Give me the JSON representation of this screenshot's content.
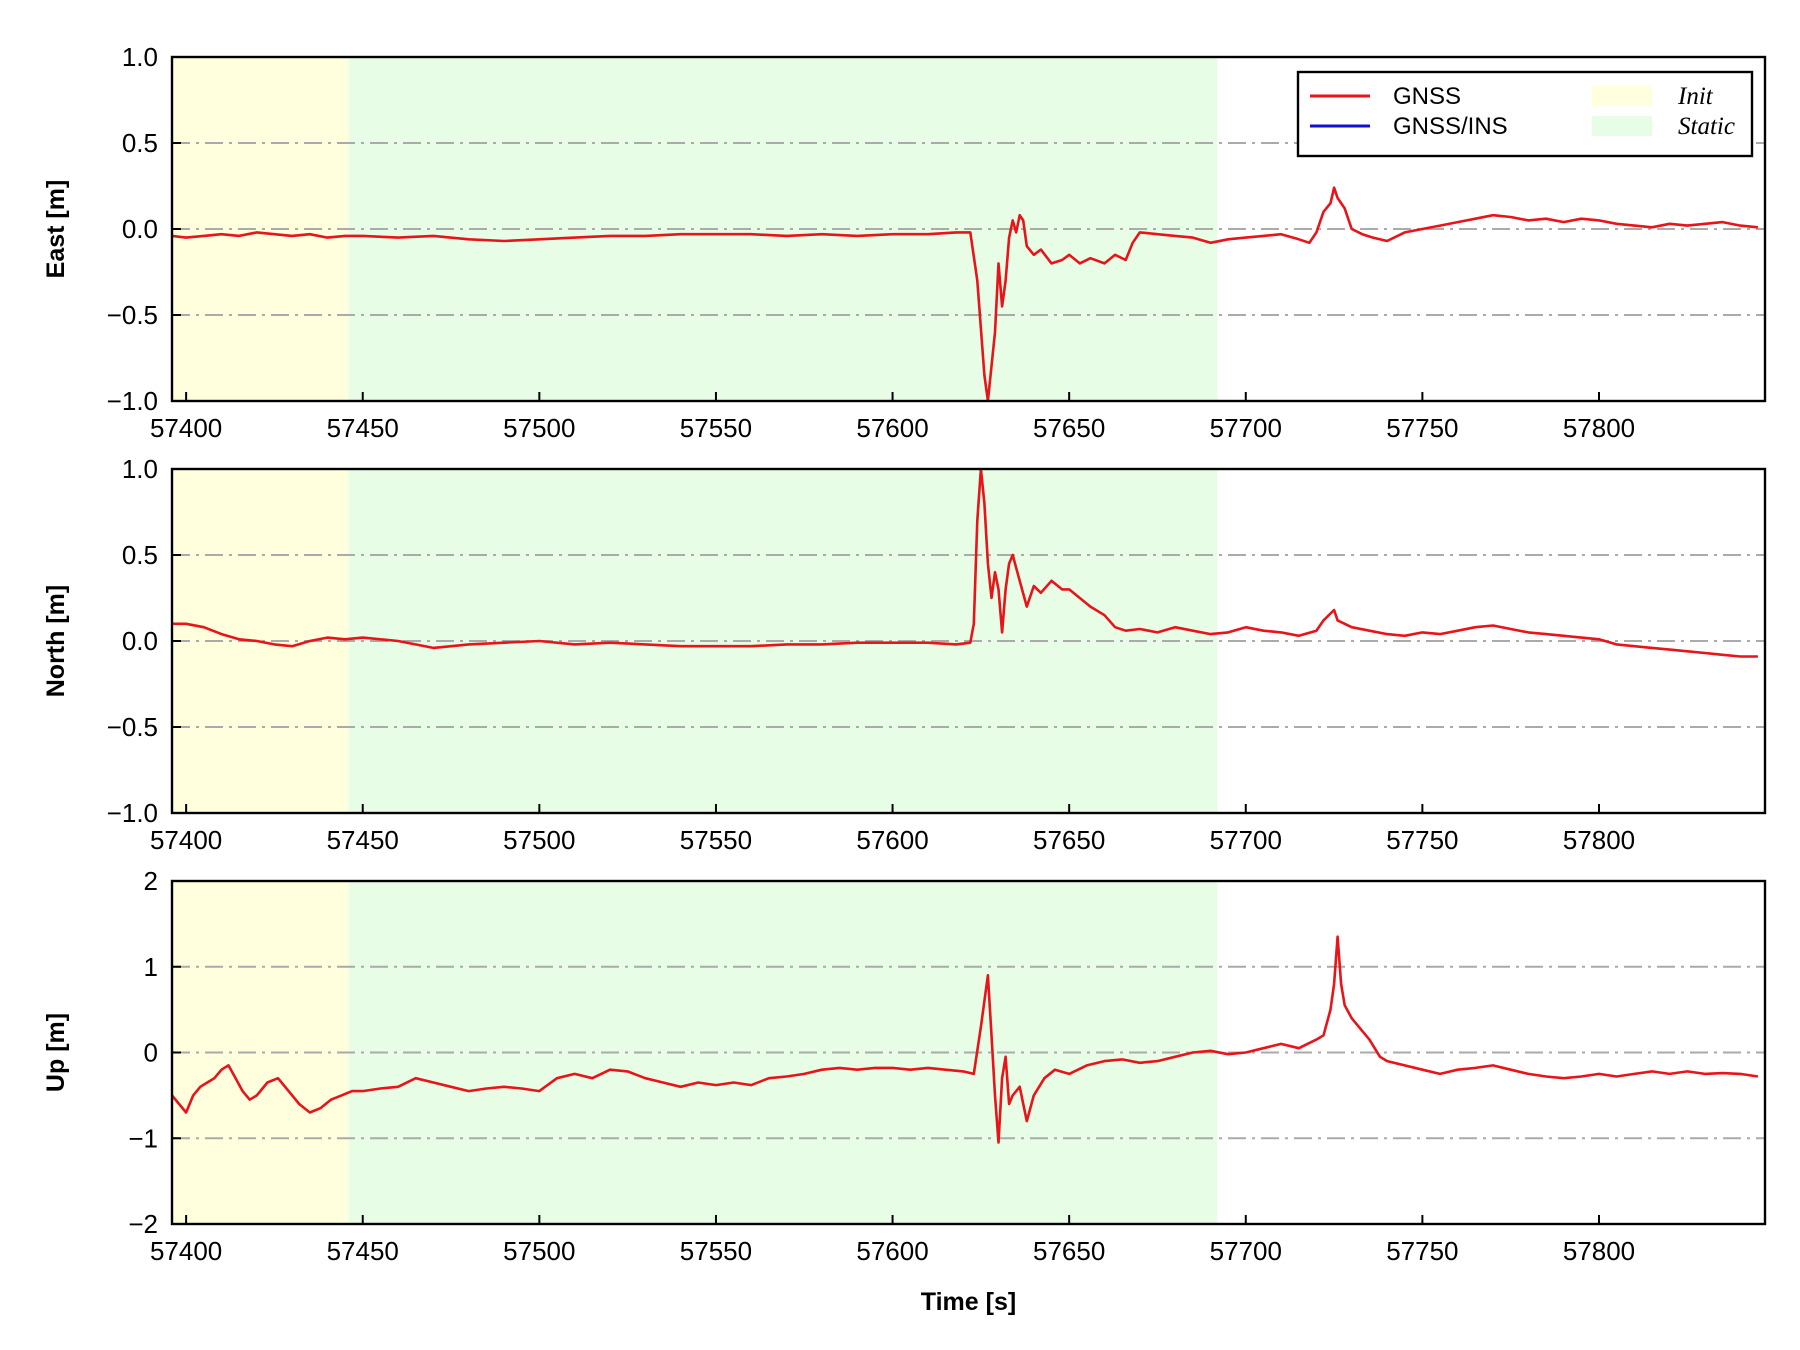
{
  "colors": {
    "gnss": "#e8141a",
    "gnss_ins": "#1010d0",
    "init_band": "#ffffdd",
    "static_band": "#e8fde6",
    "grid": "#aaaaaa"
  },
  "legend": {
    "placement": "top-right",
    "items": [
      {
        "label": "GNSS",
        "kind": "line",
        "color_key": "gnss"
      },
      {
        "label": "GNSS/INS",
        "kind": "line",
        "color_key": "gnss_ins"
      },
      {
        "label": "Init",
        "kind": "patch",
        "color_key": "init_band"
      },
      {
        "label": "Static",
        "kind": "patch",
        "color_key": "static_band"
      }
    ]
  },
  "chart_data": [
    {
      "type": "line",
      "ylabel": "East [m]",
      "xlabel": "",
      "xlim": [
        57396,
        57847
      ],
      "ylim": [
        -1.0,
        1.0
      ],
      "xticks": [
        57400,
        57450,
        57500,
        57550,
        57600,
        57650,
        57700,
        57750,
        57800
      ],
      "yticks": [
        1.0,
        0.5,
        0.0,
        -0.5,
        -1.0
      ],
      "ytick_labels": [
        "1.0",
        "0.5",
        "0.0",
        "−0.5",
        "−1.0"
      ],
      "grid": {
        "y": true,
        "style": "dash-dot"
      },
      "bands": [
        {
          "label": "Init",
          "x": [
            57396,
            57446
          ]
        },
        {
          "label": "Static",
          "x": [
            57446,
            57692
          ]
        }
      ],
      "series": [
        {
          "name": "GNSS",
          "x": [
            57396,
            57400,
            57405,
            57410,
            57415,
            57420,
            57425,
            57430,
            57435,
            57440,
            57445,
            57450,
            57460,
            57470,
            57480,
            57490,
            57500,
            57510,
            57520,
            57530,
            57540,
            57550,
            57560,
            57570,
            57580,
            57590,
            57600,
            57610,
            57618,
            57622,
            57624,
            57626,
            57627,
            57629,
            57630,
            57631,
            57632,
            57633,
            57634,
            57635,
            57636,
            57637,
            57638,
            57640,
            57642,
            57645,
            57648,
            57650,
            57653,
            57656,
            57660,
            57663,
            57666,
            57668,
            57670,
            57675,
            57680,
            57685,
            57690,
            57695,
            57700,
            57705,
            57710,
            57715,
            57718,
            57720,
            57722,
            57724,
            57725,
            57726,
            57728,
            57730,
            57733,
            57736,
            57740,
            57745,
            57750,
            57755,
            57760,
            57765,
            57770,
            57775,
            57780,
            57785,
            57790,
            57795,
            57800,
            57805,
            57810,
            57815,
            57820,
            57825,
            57830,
            57835,
            57840,
            57845
          ],
          "values": [
            -0.04,
            -0.05,
            -0.04,
            -0.03,
            -0.04,
            -0.02,
            -0.03,
            -0.04,
            -0.03,
            -0.05,
            -0.04,
            -0.04,
            -0.05,
            -0.04,
            -0.06,
            -0.07,
            -0.06,
            -0.05,
            -0.04,
            -0.04,
            -0.03,
            -0.03,
            -0.03,
            -0.04,
            -0.03,
            -0.04,
            -0.03,
            -0.03,
            -0.02,
            -0.02,
            -0.3,
            -0.85,
            -1.0,
            -0.6,
            -0.2,
            -0.45,
            -0.3,
            -0.05,
            0.05,
            -0.02,
            0.08,
            0.05,
            -0.1,
            -0.15,
            -0.12,
            -0.2,
            -0.18,
            -0.15,
            -0.2,
            -0.17,
            -0.2,
            -0.15,
            -0.18,
            -0.08,
            -0.02,
            -0.03,
            -0.04,
            -0.05,
            -0.08,
            -0.06,
            -0.05,
            -0.04,
            -0.03,
            -0.06,
            -0.08,
            -0.02,
            0.1,
            0.15,
            0.24,
            0.18,
            0.12,
            0.0,
            -0.03,
            -0.05,
            -0.07,
            -0.02,
            0.0,
            0.02,
            0.04,
            0.06,
            0.08,
            0.07,
            0.05,
            0.06,
            0.04,
            0.06,
            0.05,
            0.03,
            0.02,
            0.01,
            0.03,
            0.02,
            0.03,
            0.04,
            0.02,
            0.01
          ]
        }
      ]
    },
    {
      "type": "line",
      "ylabel": "North [m]",
      "xlabel": "",
      "xlim": [
        57396,
        57847
      ],
      "ylim": [
        -1.0,
        1.0
      ],
      "xticks": [
        57400,
        57450,
        57500,
        57550,
        57600,
        57650,
        57700,
        57750,
        57800
      ],
      "yticks": [
        1.0,
        0.5,
        0.0,
        -0.5,
        -1.0
      ],
      "ytick_labels": [
        "1.0",
        "0.5",
        "0.0",
        "−0.5",
        "−1.0"
      ],
      "grid": {
        "y": true,
        "style": "dash-dot"
      },
      "bands": [
        {
          "label": "Init",
          "x": [
            57396,
            57446
          ]
        },
        {
          "label": "Static",
          "x": [
            57446,
            57692
          ]
        }
      ],
      "series": [
        {
          "name": "GNSS",
          "x": [
            57396,
            57400,
            57405,
            57410,
            57415,
            57420,
            57425,
            57430,
            57435,
            57440,
            57445,
            57450,
            57460,
            57470,
            57480,
            57490,
            57500,
            57510,
            57520,
            57530,
            57540,
            57550,
            57560,
            57570,
            57580,
            57590,
            57600,
            57610,
            57618,
            57622,
            57623,
            57624,
            57625,
            57626,
            57627,
            57628,
            57629,
            57630,
            57631,
            57632,
            57633,
            57634,
            57636,
            57638,
            57640,
            57642,
            57645,
            57648,
            57650,
            57653,
            57656,
            57660,
            57663,
            57666,
            57670,
            57675,
            57680,
            57685,
            57690,
            57695,
            57700,
            57705,
            57710,
            57715,
            57720,
            57722,
            57724,
            57725,
            57726,
            57728,
            57730,
            57735,
            57740,
            57745,
            57750,
            57755,
            57760,
            57765,
            57770,
            57775,
            57780,
            57785,
            57790,
            57795,
            57800,
            57805,
            57810,
            57815,
            57820,
            57825,
            57830,
            57835,
            57840,
            57845
          ],
          "values": [
            0.1,
            0.1,
            0.08,
            0.04,
            0.01,
            0.0,
            -0.02,
            -0.03,
            0.0,
            0.02,
            0.01,
            0.02,
            0.0,
            -0.04,
            -0.02,
            -0.01,
            0.0,
            -0.02,
            -0.01,
            -0.02,
            -0.03,
            -0.03,
            -0.03,
            -0.02,
            -0.02,
            -0.01,
            -0.01,
            -0.01,
            -0.02,
            -0.01,
            0.1,
            0.7,
            1.0,
            0.8,
            0.45,
            0.25,
            0.4,
            0.3,
            0.05,
            0.3,
            0.45,
            0.5,
            0.35,
            0.2,
            0.32,
            0.28,
            0.35,
            0.3,
            0.3,
            0.25,
            0.2,
            0.15,
            0.08,
            0.06,
            0.07,
            0.05,
            0.08,
            0.06,
            0.04,
            0.05,
            0.08,
            0.06,
            0.05,
            0.03,
            0.06,
            0.12,
            0.16,
            0.18,
            0.12,
            0.1,
            0.08,
            0.06,
            0.04,
            0.03,
            0.05,
            0.04,
            0.06,
            0.08,
            0.09,
            0.07,
            0.05,
            0.04,
            0.03,
            0.02,
            0.01,
            -0.02,
            -0.03,
            -0.04,
            -0.05,
            -0.06,
            -0.07,
            -0.08,
            -0.09,
            -0.09
          ]
        }
      ]
    },
    {
      "type": "line",
      "ylabel": "Up [m]",
      "xlabel": "Time [s]",
      "xlim": [
        57396,
        57847
      ],
      "ylim": [
        -2,
        2
      ],
      "xticks": [
        57400,
        57450,
        57500,
        57550,
        57600,
        57650,
        57700,
        57750,
        57800
      ],
      "yticks": [
        2,
        1,
        0,
        -1,
        -2
      ],
      "ytick_labels": [
        "2",
        "1",
        "0",
        "−1",
        "−2"
      ],
      "grid": {
        "y": true,
        "style": "dash-dot"
      },
      "bands": [
        {
          "label": "Init",
          "x": [
            57396,
            57446
          ]
        },
        {
          "label": "Static",
          "x": [
            57446,
            57692
          ]
        }
      ],
      "series": [
        {
          "name": "GNSS",
          "x": [
            57396,
            57398,
            57400,
            57402,
            57404,
            57406,
            57408,
            57410,
            57412,
            57414,
            57416,
            57418,
            57420,
            57423,
            57426,
            57429,
            57432,
            57435,
            57438,
            57441,
            57444,
            57447,
            57450,
            57455,
            57460,
            57465,
            57470,
            57475,
            57480,
            57485,
            57490,
            57495,
            57500,
            57505,
            57510,
            57515,
            57520,
            57525,
            57530,
            57535,
            57540,
            57545,
            57550,
            57555,
            57560,
            57565,
            57570,
            57575,
            57580,
            57585,
            57590,
            57595,
            57600,
            57605,
            57610,
            57615,
            57620,
            57623,
            57625,
            57627,
            57628,
            57629,
            57630,
            57631,
            57632,
            57633,
            57634,
            57636,
            57638,
            57640,
            57643,
            57646,
            57650,
            57655,
            57660,
            57665,
            57670,
            57675,
            57680,
            57685,
            57690,
            57695,
            57700,
            57705,
            57710,
            57715,
            57720,
            57722,
            57724,
            57725,
            57726,
            57727,
            57728,
            57730,
            57732,
            57735,
            57738,
            57740,
            57745,
            57750,
            57755,
            57760,
            57765,
            57770,
            57775,
            57780,
            57785,
            57790,
            57795,
            57800,
            57805,
            57810,
            57815,
            57820,
            57825,
            57830,
            57835,
            57840,
            57845
          ],
          "values": [
            -0.5,
            -0.6,
            -0.7,
            -0.5,
            -0.4,
            -0.35,
            -0.3,
            -0.2,
            -0.15,
            -0.3,
            -0.45,
            -0.55,
            -0.5,
            -0.35,
            -0.3,
            -0.45,
            -0.6,
            -0.7,
            -0.65,
            -0.55,
            -0.5,
            -0.45,
            -0.45,
            -0.42,
            -0.4,
            -0.3,
            -0.35,
            -0.4,
            -0.45,
            -0.42,
            -0.4,
            -0.42,
            -0.45,
            -0.3,
            -0.25,
            -0.3,
            -0.2,
            -0.22,
            -0.3,
            -0.35,
            -0.4,
            -0.35,
            -0.38,
            -0.35,
            -0.38,
            -0.3,
            -0.28,
            -0.25,
            -0.2,
            -0.18,
            -0.2,
            -0.18,
            -0.18,
            -0.2,
            -0.18,
            -0.2,
            -0.22,
            -0.25,
            0.3,
            0.9,
            0.2,
            -0.5,
            -1.05,
            -0.3,
            -0.05,
            -0.6,
            -0.5,
            -0.4,
            -0.8,
            -0.5,
            -0.3,
            -0.2,
            -0.25,
            -0.15,
            -0.1,
            -0.08,
            -0.12,
            -0.1,
            -0.05,
            0.0,
            0.02,
            -0.02,
            0.0,
            0.05,
            0.1,
            0.05,
            0.15,
            0.2,
            0.5,
            0.8,
            1.35,
            0.8,
            0.55,
            0.4,
            0.3,
            0.15,
            -0.05,
            -0.1,
            -0.15,
            -0.2,
            -0.25,
            -0.2,
            -0.18,
            -0.15,
            -0.2,
            -0.25,
            -0.28,
            -0.3,
            -0.28,
            -0.25,
            -0.28,
            -0.25,
            -0.22,
            -0.25,
            -0.22,
            -0.25,
            -0.24,
            -0.25,
            -0.28
          ]
        }
      ]
    }
  ]
}
